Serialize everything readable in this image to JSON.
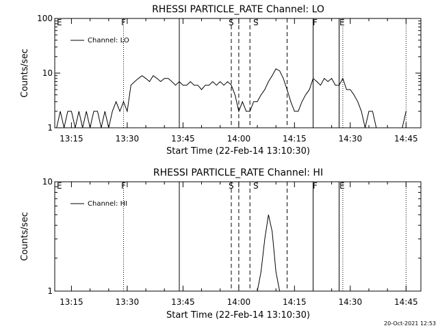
{
  "footer": {
    "timestamp": "20-Oct-2021 12:53"
  },
  "chart_data": [
    {
      "type": "line",
      "title": "RHESSI PARTICLE_RATE Channel: LO",
      "xlabel": "Start Time (22-Feb-14 13:10:30)",
      "ylabel": "Counts/sec",
      "yscale": "log",
      "ylim": [
        1,
        100
      ],
      "yticks": [
        "1",
        "10",
        "100"
      ],
      "xlim_minutes": [
        13.17,
        14.8
      ],
      "xticks": [
        "13:15",
        "13:30",
        "13:45",
        "14:00",
        "14:15",
        "14:30",
        "14:45"
      ],
      "legend": {
        "label": "Channel: LO",
        "placement": "top-left"
      },
      "flags": [
        "E",
        "F",
        "S",
        "S",
        "F",
        "E"
      ],
      "vlines": [
        {
          "t": 13.48,
          "style": "dotted"
        },
        {
          "t": 13.73,
          "style": "solid"
        },
        {
          "t": 13.97,
          "style": "dashed"
        },
        {
          "t": 14.0,
          "style": "dashed"
        },
        {
          "t": 14.05,
          "style": "dashed"
        },
        {
          "t": 14.22,
          "style": "dashed"
        },
        {
          "t": 14.33,
          "style": "solid"
        },
        {
          "t": 14.45,
          "style": "solid"
        },
        {
          "t": 14.47,
          "style": "dotted"
        },
        {
          "t": 14.75,
          "style": "dotted"
        }
      ],
      "series": [
        {
          "x": [
            "13:11",
            "13:12",
            "13:13",
            "13:14",
            "13:15",
            "13:16",
            "13:17",
            "13:18",
            "13:19",
            "13:20",
            "13:21",
            "13:22",
            "13:23",
            "13:24",
            "13:25",
            "13:26",
            "13:27",
            "13:28",
            "13:29",
            "13:30",
            "13:31",
            "13:32",
            "13:33",
            "13:34",
            "13:35",
            "13:36",
            "13:37",
            "13:38",
            "13:39",
            "13:40",
            "13:41",
            "13:42",
            "13:43",
            "13:44",
            "13:45",
            "13:46",
            "13:47",
            "13:48",
            "13:49",
            "13:50",
            "13:51",
            "13:52",
            "13:53",
            "13:54",
            "13:55",
            "13:56",
            "13:57",
            "13:58",
            "13:59",
            "14:00",
            "14:01",
            "14:02",
            "14:03",
            "14:04",
            "14:05",
            "14:06",
            "14:07",
            "14:08",
            "14:09",
            "14:10",
            "14:11",
            "14:12",
            "14:13",
            "14:14",
            "14:15",
            "14:16",
            "14:17",
            "14:18",
            "14:19",
            "14:20",
            "14:21",
            "14:22",
            "14:23",
            "14:24",
            "14:25",
            "14:26",
            "14:27",
            "14:28",
            "14:29",
            "14:30",
            "14:31",
            "14:32",
            "14:33",
            "14:34",
            "14:35",
            "14:36",
            "14:37",
            "14:38",
            "14:39",
            "14:40",
            "14:41",
            "14:42",
            "14:43",
            "14:44",
            "14:45"
          ],
          "y": [
            1,
            2,
            1,
            2,
            2,
            1,
            2,
            1,
            2,
            1,
            2,
            2,
            1,
            2,
            1,
            2,
            3,
            2,
            3,
            2,
            6,
            7,
            8,
            9,
            8,
            7,
            9,
            8,
            7,
            8,
            8,
            7,
            6,
            7,
            6,
            6,
            7,
            6,
            6,
            5,
            6,
            6,
            7,
            6,
            7,
            6,
            7,
            6,
            4,
            2,
            3,
            2,
            2,
            3,
            3,
            4,
            5,
            7,
            9,
            12,
            11,
            8,
            5,
            3,
            2,
            2,
            3,
            4,
            5,
            8,
            7,
            6,
            8,
            7,
            8,
            6,
            6,
            8,
            5,
            5,
            4,
            3,
            2,
            1,
            2,
            2,
            1,
            1,
            1,
            1,
            1,
            1,
            1,
            1,
            2
          ]
        }
      ]
    },
    {
      "type": "line",
      "title": "RHESSI PARTICLE_RATE Channel: HI",
      "xlabel": "Start Time (22-Feb-14 13:10:30)",
      "ylabel": "Counts/sec",
      "yscale": "log",
      "ylim": [
        1,
        10
      ],
      "yticks": [
        "1",
        "10"
      ],
      "xlim_minutes": [
        13.17,
        14.8
      ],
      "xticks": [
        "13:15",
        "13:30",
        "13:45",
        "14:00",
        "14:15",
        "14:30",
        "14:45"
      ],
      "legend": {
        "label": "Channel: HI",
        "placement": "top-left"
      },
      "flags": [
        "E",
        "F",
        "S",
        "S",
        "F",
        "E"
      ],
      "vlines": [
        {
          "t": 13.48,
          "style": "dotted"
        },
        {
          "t": 13.73,
          "style": "solid"
        },
        {
          "t": 13.97,
          "style": "dashed"
        },
        {
          "t": 14.0,
          "style": "dashed"
        },
        {
          "t": 14.05,
          "style": "dashed"
        },
        {
          "t": 14.22,
          "style": "dashed"
        },
        {
          "t": 14.33,
          "style": "solid"
        },
        {
          "t": 14.45,
          "style": "solid"
        },
        {
          "t": 14.47,
          "style": "dotted"
        },
        {
          "t": 14.75,
          "style": "dotted"
        }
      ],
      "series": [
        {
          "x": [
            "14:05",
            "14:06",
            "14:07",
            "14:08",
            "14:09",
            "14:10",
            "14:11"
          ],
          "y": [
            1,
            1.5,
            3,
            5,
            3.5,
            1.5,
            1
          ]
        }
      ]
    }
  ]
}
